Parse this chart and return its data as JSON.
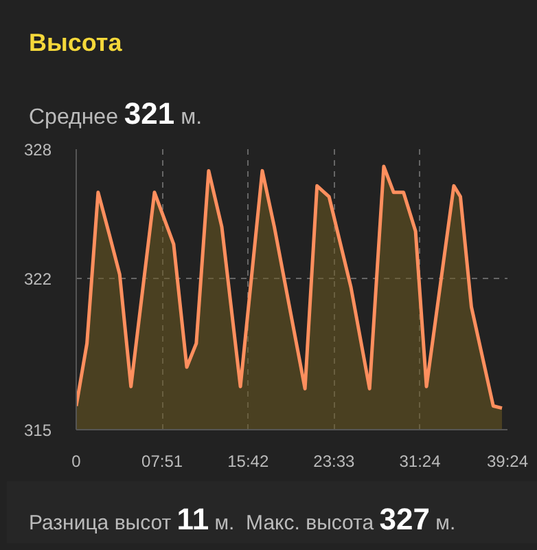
{
  "chart_data": {
    "type": "area",
    "title": "Высота",
    "annotations": [
      "Среднее 321 м.",
      "Разница высот 11 м.",
      "Макс. высота 327 м."
    ],
    "series": [
      {
        "color": "#ff8f5e",
        "x": [
          0,
          0.98,
          2.0,
          3.05,
          3.97,
          5.0,
          6.05,
          7.15,
          8.9,
          10.1,
          10.97,
          12.1,
          13.3,
          15.0,
          17.0,
          18.1,
          20.9,
          22.0,
          23.1,
          25.1,
          26.8,
          28.1,
          29.0,
          29.9,
          31.0,
          32.0,
          34.5,
          35.1,
          36.1,
          38.1,
          38.9
        ],
        "values": [
          316.1,
          319.0,
          326.0,
          324.0,
          322.2,
          317.0,
          321.4,
          326.0,
          323.6,
          317.9,
          319.0,
          327.0,
          324.4,
          317.0,
          327.0,
          324.4,
          316.9,
          326.3,
          325.8,
          321.6,
          316.9,
          327.2,
          326.0,
          326.0,
          324.2,
          317.0,
          326.3,
          325.8,
          320.7,
          316.1,
          316.0
        ]
      }
    ],
    "xlim": [
      0,
      39.4
    ],
    "xticks": [
      0,
      {
        "value": 7.85,
        "label": "07:51"
      },
      {
        "value": 15.7,
        "label": "15:42"
      },
      {
        "value": 23.55,
        "label": "23:33"
      },
      {
        "value": 31.4,
        "label": "31:24"
      },
      {
        "value": 39.4,
        "label": "39:24"
      }
    ],
    "ylim": [
      315,
      328
    ],
    "yticks": [
      315,
      322,
      328
    ],
    "grid": true,
    "line_style": "solid"
  }
}
